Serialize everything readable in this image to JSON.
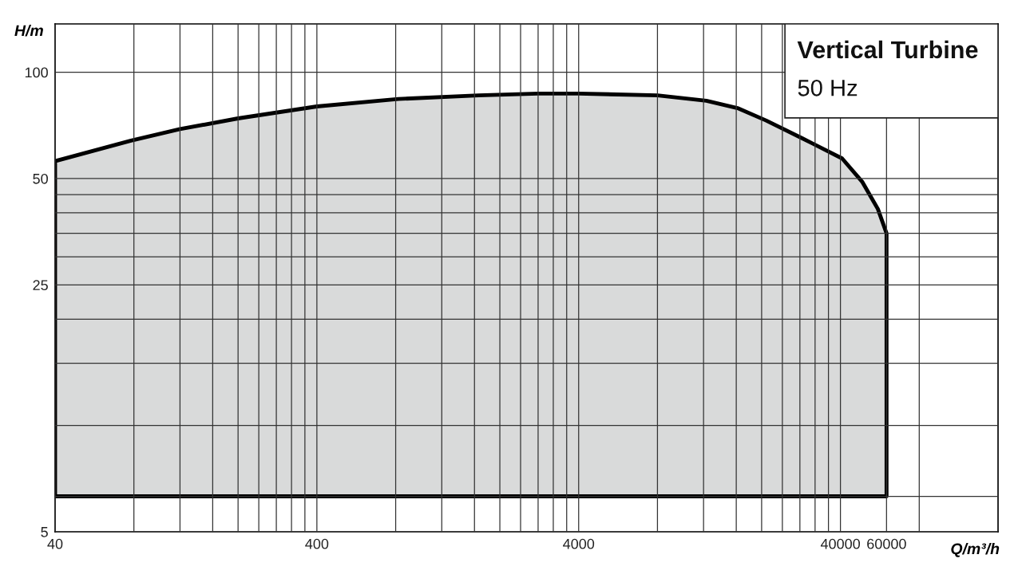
{
  "chart_data": {
    "type": "area",
    "title": "Vertical Turbine",
    "subtitle": "50 Hz",
    "xlabel": "Q/m³/h",
    "ylabel": "H/m",
    "log": "xy",
    "grid": true,
    "legend": false,
    "xlim": [
      40,
      160000
    ],
    "ylim": [
      5,
      137
    ],
    "xticks": [
      40,
      {
        "value": 80,
        "label": null
      },
      {
        "value": 120,
        "label": null
      },
      {
        "value": 160,
        "label": null
      },
      {
        "value": 200,
        "label": null
      },
      {
        "value": 240,
        "label": null
      },
      {
        "value": 280,
        "label": null
      },
      {
        "value": 320,
        "label": null
      },
      {
        "value": 360,
        "label": null
      },
      400,
      {
        "value": 800,
        "label": null
      },
      {
        "value": 1200,
        "label": null
      },
      {
        "value": 1600,
        "label": null
      },
      {
        "value": 2000,
        "label": null
      },
      {
        "value": 2400,
        "label": null
      },
      {
        "value": 2800,
        "label": null
      },
      {
        "value": 3200,
        "label": null
      },
      {
        "value": 3600,
        "label": null
      },
      4000,
      {
        "value": 8000,
        "label": null
      },
      {
        "value": 12000,
        "label": null
      },
      {
        "value": 16000,
        "label": null
      },
      {
        "value": 20000,
        "label": null
      },
      {
        "value": 24000,
        "label": null
      },
      {
        "value": 28000,
        "label": null
      },
      {
        "value": 32000,
        "label": null
      },
      {
        "value": 36000,
        "label": null
      },
      40000,
      60000,
      {
        "value": 80000,
        "label": null
      }
    ],
    "yticks": [
      5,
      {
        "value": 6.3,
        "label": null
      },
      {
        "value": 10,
        "label": null
      },
      {
        "value": 15,
        "label": null
      },
      {
        "value": 20,
        "label": null
      },
      25,
      {
        "value": 30,
        "label": null
      },
      {
        "value": 35,
        "label": null
      },
      {
        "value": 40,
        "label": null
      },
      {
        "value": 45,
        "label": null
      },
      50,
      100
    ],
    "series": [
      {
        "color": "#d9dada",
        "x": [
          40,
          78,
          120,
          200,
          400,
          820,
          1660,
          2800,
          4000,
          8000,
          12300,
          16300,
          20800,
          28600,
          40600,
          48400,
          55600,
          60000,
          60000,
          40,
          40
        ],
        "values": [
          56,
          64,
          69,
          74,
          80,
          84,
          86,
          87,
          87,
          86,
          83,
          79,
          73,
          65,
          57,
          49,
          41,
          35,
          6.3,
          6.3,
          56
        ]
      }
    ]
  }
}
